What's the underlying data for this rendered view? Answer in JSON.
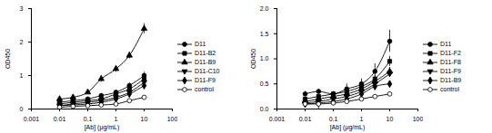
{
  "chart_data": [
    {
      "type": "scatter",
      "xlabel": "[Ab] (μg/mL)",
      "ylabel": "OD450",
      "log": "x",
      "legend": "right",
      "x": [
        0.01,
        0.03,
        0.1,
        0.3,
        1,
        3,
        10
      ],
      "xlim": [
        0.001,
        100
      ],
      "xticks": [
        0.001,
        0.01,
        0.1,
        1,
        10,
        100
      ],
      "ylim": [
        0,
        3
      ],
      "yticks": [
        0,
        1,
        2,
        3
      ],
      "series": [
        {
          "name": "D11",
          "color": "#000000",
          "marker": "circle",
          "line_style": "solid",
          "values": [
            0.2,
            0.25,
            0.3,
            0.4,
            0.5,
            0.7,
            1.0
          ],
          "errors": [
            0.03,
            0.03,
            0.03,
            0.05,
            0.05,
            0.08,
            0.1
          ]
        },
        {
          "name": "D11-B2",
          "color": "#000000",
          "marker": "square",
          "line_style": "solid",
          "values": [
            0.15,
            0.2,
            0.25,
            0.3,
            0.45,
            0.6,
            0.9
          ],
          "errors": [
            0.03,
            0.03,
            0.03,
            0.04,
            0.05,
            0.06,
            0.08
          ]
        },
        {
          "name": "D11-B9",
          "color": "#000000",
          "marker": "triangle",
          "line_style": "solid",
          "values": [
            0.3,
            0.35,
            0.5,
            0.9,
            1.2,
            1.6,
            2.4
          ],
          "errors": [
            0.05,
            0.05,
            0.05,
            0.1,
            0.1,
            0.1,
            0.15
          ]
        },
        {
          "name": "D11-C10",
          "color": "#000000",
          "marker": "triangle-down",
          "line_style": "solid",
          "values": [
            0.1,
            0.15,
            0.2,
            0.25,
            0.35,
            0.5,
            0.8
          ],
          "errors": [
            0.02,
            0.02,
            0.03,
            0.03,
            0.04,
            0.05,
            0.08
          ]
        },
        {
          "name": "D11-F9",
          "color": "#000000",
          "marker": "diamond",
          "line_style": "solid",
          "values": [
            0.1,
            0.12,
            0.15,
            0.2,
            0.3,
            0.45,
            0.7
          ],
          "errors": [
            0.02,
            0.02,
            0.02,
            0.03,
            0.04,
            0.05,
            0.06
          ]
        },
        {
          "name": "control",
          "color": "#000000",
          "marker": "circle-open",
          "line_style": "solid",
          "values": [
            0.05,
            0.08,
            0.1,
            0.12,
            0.15,
            0.25,
            0.35
          ],
          "errors": [
            0.02,
            0.02,
            0.02,
            0.02,
            0.03,
            0.03,
            0.04
          ]
        }
      ]
    },
    {
      "type": "scatter",
      "xlabel": "[Ab] (μg/mL)",
      "ylabel": "OD450",
      "log": "x",
      "legend": "right",
      "x": [
        0.01,
        0.03,
        0.1,
        0.3,
        1,
        3,
        10
      ],
      "xlim": [
        0.001,
        100
      ],
      "xticks": [
        0.001,
        0.01,
        0.1,
        1,
        10,
        100
      ],
      "ylim": [
        0,
        2
      ],
      "yticks": [
        {
          "value": 0,
          "label": "0.0"
        },
        {
          "value": 0.5,
          "label": "0.5"
        },
        {
          "value": 1,
          "label": "1.0"
        },
        {
          "value": 1.5,
          "label": "1.5"
        },
        {
          "value": 2,
          "label": "2.0"
        }
      ],
      "series": [
        {
          "name": "D11",
          "color": "#000000",
          "marker": "circle",
          "line_style": "solid",
          "values": [
            0.3,
            0.35,
            0.3,
            0.4,
            0.5,
            0.75,
            1.35
          ],
          "errors": [
            0.05,
            0.05,
            0.05,
            0.1,
            0.1,
            0.15,
            0.22
          ]
        },
        {
          "name": "D11-F2",
          "color": "#000000",
          "marker": "square",
          "line_style": "solid",
          "values": [
            0.2,
            0.25,
            0.3,
            0.35,
            0.45,
            0.6,
            0.95
          ],
          "errors": [
            0.03,
            0.03,
            0.04,
            0.04,
            0.05,
            0.06,
            0.1
          ]
        },
        {
          "name": "D11-F8",
          "color": "#000000",
          "marker": "triangle",
          "line_style": "solid",
          "values": [
            0.15,
            0.2,
            0.25,
            0.3,
            0.4,
            0.55,
            0.75
          ],
          "errors": [
            0.03,
            0.03,
            0.03,
            0.04,
            0.04,
            0.05,
            0.08
          ]
        },
        {
          "name": "D11-F9",
          "color": "#000000",
          "marker": "triangle-down",
          "line_style": "solid",
          "values": [
            0.12,
            0.15,
            0.2,
            0.25,
            0.35,
            0.5,
            0.7
          ],
          "errors": [
            0.02,
            0.02,
            0.03,
            0.03,
            0.04,
            0.05,
            0.06
          ]
        },
        {
          "name": "D11-B9",
          "color": "#000000",
          "marker": "diamond",
          "line_style": "solid",
          "values": [
            0.1,
            0.12,
            0.15,
            0.2,
            0.3,
            0.45,
            0.5
          ],
          "errors": [
            0.02,
            0.02,
            0.02,
            0.03,
            0.03,
            0.04,
            0.05
          ]
        },
        {
          "name": "control",
          "color": "#000000",
          "marker": "circle-open",
          "line_style": "solid",
          "values": [
            0.1,
            0.1,
            0.12,
            0.15,
            0.2,
            0.25,
            0.3
          ],
          "errors": [
            0.02,
            0.1,
            0.02,
            0.02,
            0.03,
            0.03,
            0.04
          ]
        }
      ]
    }
  ]
}
